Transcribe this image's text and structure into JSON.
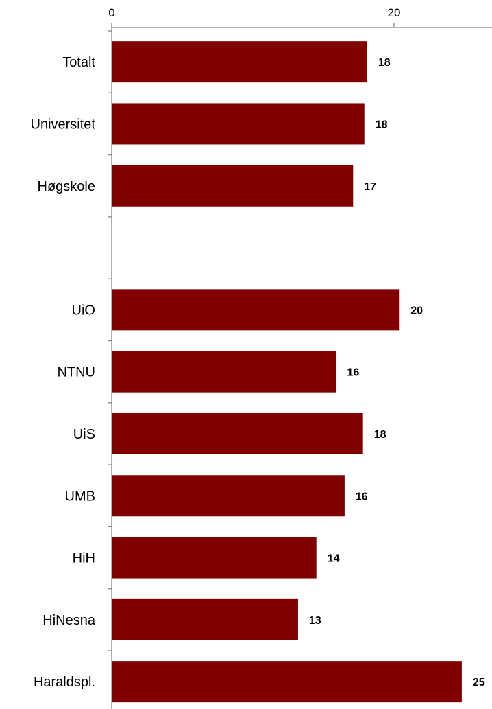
{
  "chart_data": {
    "type": "bar",
    "orientation": "horizontal",
    "x_axis_position": "top",
    "xlim": [
      0,
      25
    ],
    "x_ticks": [
      0,
      20
    ],
    "x_tick_labels": [
      "0",
      "20"
    ],
    "grid": false,
    "legend": "none",
    "bar_color": "#800000",
    "categories": [
      "Totalt",
      "Universitet",
      "Høgskole",
      "",
      "UiO",
      "NTNU",
      "UiS",
      "UMB",
      "HiH",
      "HiNesna",
      "Haraldspl."
    ],
    "values": [
      18.1,
      17.9,
      17.1,
      null,
      20.4,
      15.9,
      17.8,
      16.5,
      14.5,
      13.2,
      24.8
    ],
    "data_labels": [
      "18",
      "18",
      "17",
      "",
      "20",
      "16",
      "18",
      "16",
      "14",
      "13",
      "25"
    ]
  }
}
